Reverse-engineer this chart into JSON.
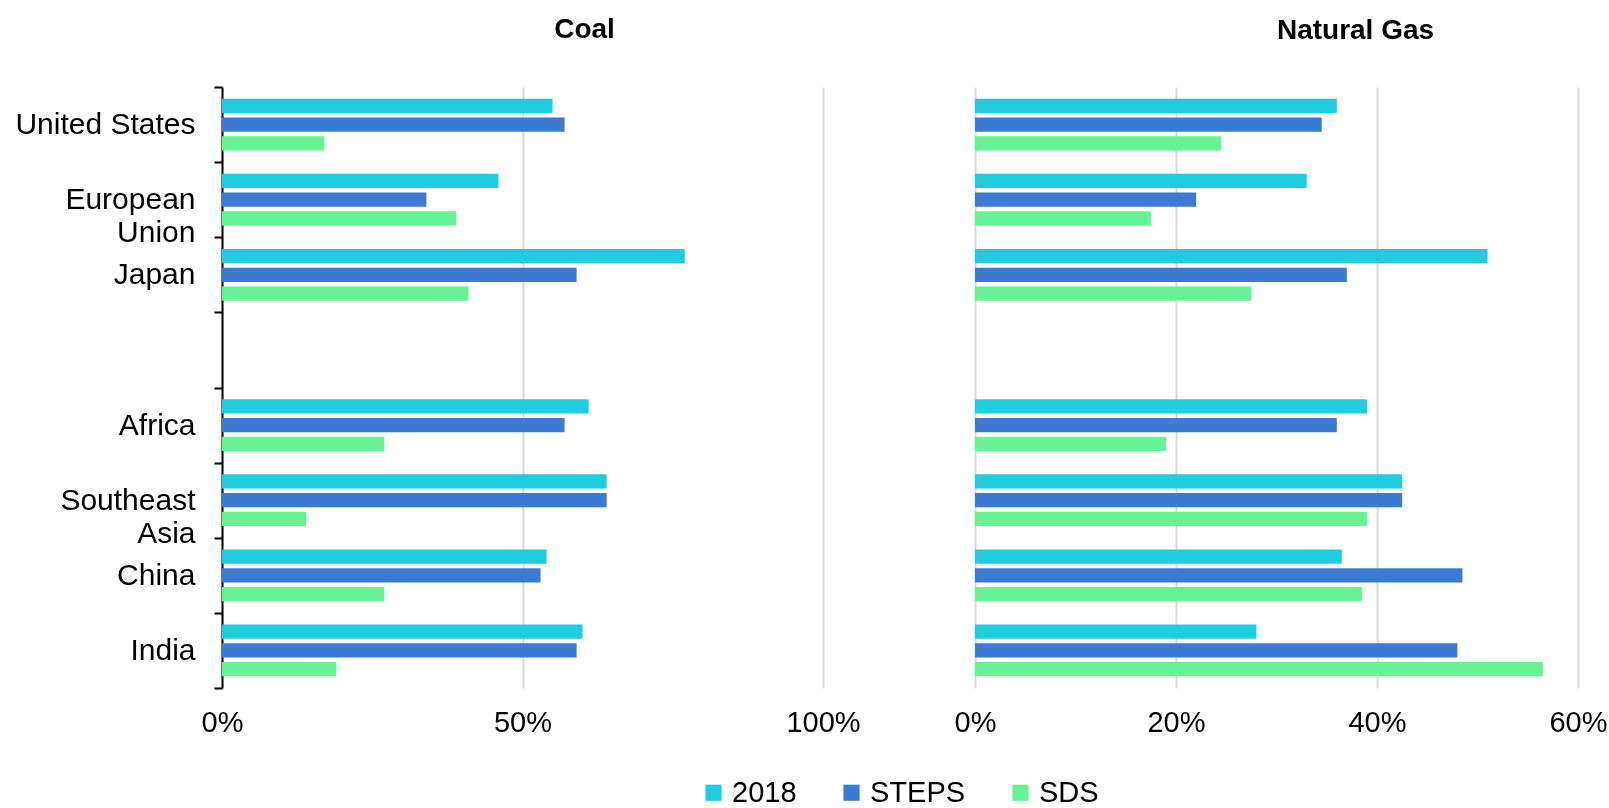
{
  "chart_data": [
    {
      "type": "bar",
      "title": "Coal",
      "orientation": "horizontal",
      "categories": [
        "United States",
        "European Union",
        "Japan",
        null,
        "Africa",
        "Southeast Asia",
        "China",
        "India"
      ],
      "series": [
        {
          "name": "2018",
          "color": "#1fcde1",
          "values": [
            55,
            46,
            77,
            null,
            61,
            64,
            54,
            60
          ]
        },
        {
          "name": "STEPS",
          "color": "#3c7bd3",
          "values": [
            57,
            34,
            59,
            null,
            57,
            64,
            53,
            59
          ]
        },
        {
          "name": "SDS",
          "color": "#66f393",
          "values": [
            17,
            39,
            41,
            null,
            27,
            14,
            27,
            19
          ]
        }
      ],
      "xlim": [
        0,
        100
      ],
      "xticks": [
        {
          "value": 0,
          "label": "0%"
        },
        {
          "value": 50,
          "label": "50%"
        },
        {
          "value": 100,
          "label": "100%"
        }
      ],
      "grid": "x",
      "legend": "bottom"
    },
    {
      "type": "bar",
      "title": "Natural Gas",
      "orientation": "horizontal",
      "categories": [
        "United States",
        "European Union",
        "Japan",
        null,
        "Africa",
        "Southeast Asia",
        "China",
        "India"
      ],
      "series": [
        {
          "name": "2018",
          "color": "#1fcde1",
          "values": [
            36,
            33,
            51,
            null,
            39,
            42.5,
            36.5,
            28
          ]
        },
        {
          "name": "STEPS",
          "color": "#3c7bd3",
          "values": [
            34.5,
            22,
            37,
            null,
            36,
            42.5,
            48.5,
            48
          ]
        },
        {
          "name": "SDS",
          "color": "#66f393",
          "values": [
            24.5,
            17.5,
            27.5,
            null,
            19,
            39,
            38.5,
            56.5
          ]
        }
      ],
      "xlim": [
        0,
        60
      ],
      "xticks": [
        {
          "value": 0,
          "label": "0%"
        },
        {
          "value": 20,
          "label": "20%"
        },
        {
          "value": 40,
          "label": "40%"
        },
        {
          "value": 60,
          "label": "60%"
        }
      ],
      "grid": "x",
      "tick_labels": "x"
    }
  ]
}
